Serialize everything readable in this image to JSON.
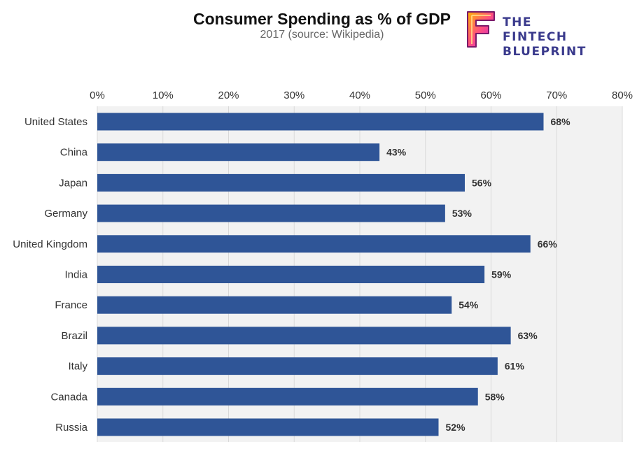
{
  "header": {
    "title": "Consumer Spending as % of GDP",
    "subtitle": "2017 (source: Wikipedia)"
  },
  "logo": {
    "line1": "THE FINTECH",
    "line2": "BLUEPRINT",
    "icon": "fintech-f-logo-icon"
  },
  "colors": {
    "bar": "#2f5597",
    "plot_background": "#f2f2f2",
    "gridline": "#d9d9d9"
  },
  "chart_data": {
    "type": "bar",
    "orientation": "horizontal",
    "title": "Consumer Spending as % of GDP",
    "subtitle": "2017 (source: Wikipedia)",
    "categories": [
      "United States",
      "China",
      "Japan",
      "Germany",
      "United Kingdom",
      "India",
      "France",
      "Brazil",
      "Italy",
      "Canada",
      "Russia"
    ],
    "values": [
      68,
      43,
      56,
      53,
      66,
      59,
      54,
      63,
      61,
      58,
      52
    ],
    "value_labels": [
      "68%",
      "43%",
      "56%",
      "53%",
      "66%",
      "59%",
      "54%",
      "63%",
      "61%",
      "58%",
      "52%"
    ],
    "xlim": [
      0,
      80
    ],
    "x_ticks": [
      0,
      10,
      20,
      30,
      40,
      50,
      60,
      70,
      80
    ],
    "x_tick_labels": [
      "0%",
      "10%",
      "20%",
      "30%",
      "40%",
      "50%",
      "60%",
      "70%",
      "80%"
    ],
    "x_axis_position": "top",
    "grid": true,
    "legend": "none"
  }
}
